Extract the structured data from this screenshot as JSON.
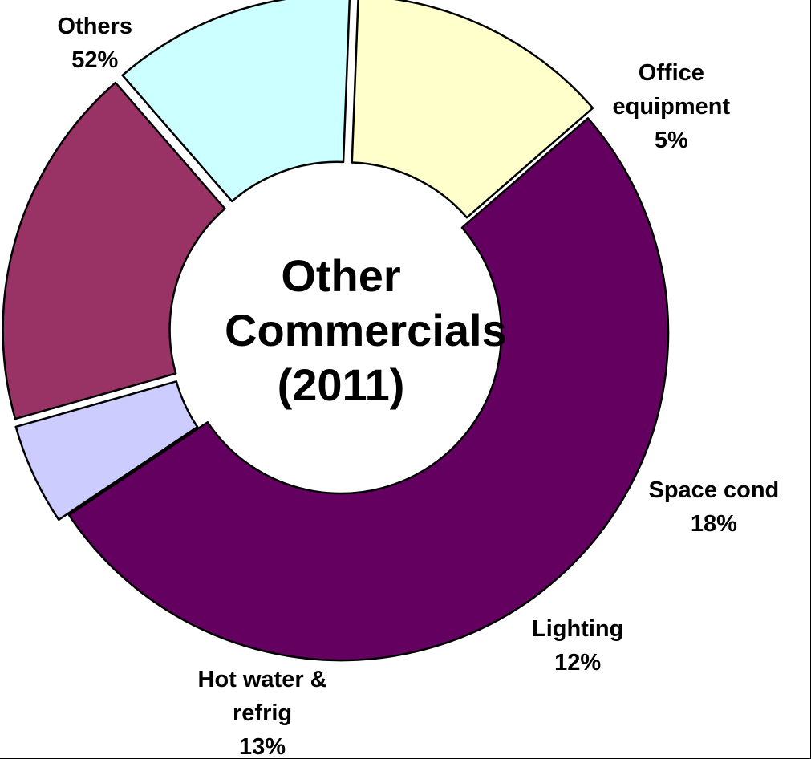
{
  "chart_data": {
    "type": "pie",
    "donut": true,
    "title": [
      "Other",
      "Commercials",
      "(2011)"
    ],
    "slices": [
      {
        "name": "Others",
        "label_lines": [
          "Others"
        ],
        "value": 52,
        "value_label": "52%",
        "color": "#630060",
        "exploded": false
      },
      {
        "name": "Office equipment",
        "label_lines": [
          "Office",
          "equipment"
        ],
        "value": 5,
        "value_label": "5%",
        "color": "#ccccff",
        "exploded": true
      },
      {
        "name": "Space cond",
        "label_lines": [
          "Space cond"
        ],
        "value": 18,
        "value_label": "18%",
        "color": "#993366",
        "exploded": true
      },
      {
        "name": "Lighting",
        "label_lines": [
          "Lighting"
        ],
        "value": 12,
        "value_label": "12%",
        "color": "#ccffff",
        "exploded": true
      },
      {
        "name": "Hot water & refrig",
        "label_lines": [
          "Hot water &",
          "refrig"
        ],
        "value": 13,
        "value_label": "13%",
        "color": "#ffffcc",
        "exploded": true
      }
    ]
  }
}
